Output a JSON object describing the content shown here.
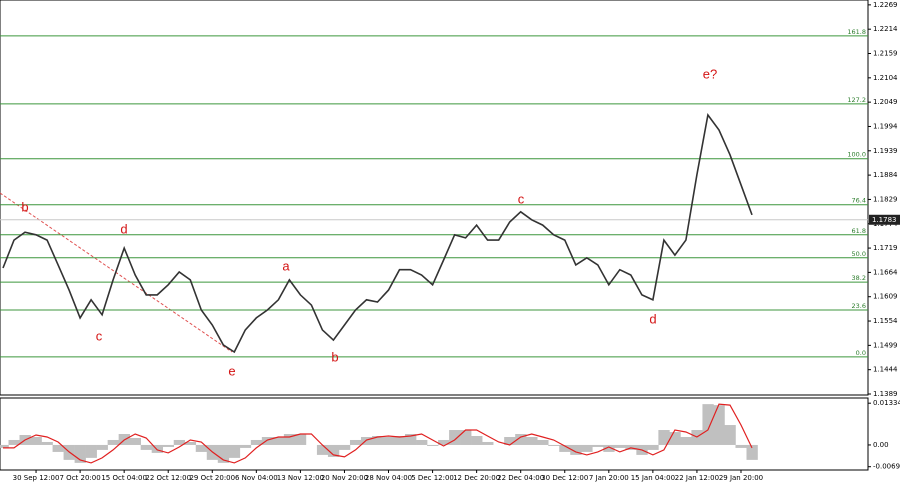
{
  "chart_data": [
    {
      "type": "line",
      "categories": [
        null,
        null,
        null,
        "30 Sep 12:00",
        null,
        null,
        null,
        "7 Oct 20:00",
        null,
        null,
        null,
        "15 Oct 04:00",
        null,
        null,
        null,
        "22 Oct 12:00",
        null,
        null,
        null,
        "29 Oct 20:00",
        null,
        null,
        null,
        "6 Nov 04:00",
        null,
        null,
        null,
        "13 Nov 12:00",
        null,
        null,
        null,
        "20 Nov 20:00",
        null,
        null,
        null,
        "28 Nov 04:00",
        null,
        null,
        null,
        "5 Dec 12:00",
        null,
        null,
        null,
        "12 Dec 20:00",
        null,
        null,
        null,
        "22 Dec 04:00",
        null,
        null,
        null,
        "30 Dec 12:00",
        null,
        null,
        null,
        "7 Jan 20:00",
        null,
        null,
        null,
        "15 Jan 04:00",
        null,
        null,
        null,
        "22 Jan 12:00",
        null,
        null,
        null,
        "29 Jan 20:00",
        null
      ],
      "series": [
        {
          "color": "#333333",
          "values": [
            1.1674,
            1.1737,
            1.1755,
            1.1749,
            1.1737,
            1.1681,
            1.1624,
            1.1561,
            1.1602,
            1.1568,
            1.1647,
            1.1719,
            1.1658,
            1.1613,
            1.1613,
            1.1636,
            1.1665,
            1.1647,
            1.1579,
            1.1545,
            1.15,
            1.1484,
            1.1534,
            1.1561,
            1.1579,
            1.1602,
            1.1647,
            1.1613,
            1.159,
            1.1534,
            1.1511,
            1.1545,
            1.1579,
            1.1602,
            1.1597,
            1.1624,
            1.167,
            1.167,
            1.1658,
            1.1636,
            1.1692,
            1.1749,
            1.1742,
            1.1771,
            1.1737,
            1.1737,
            1.1778,
            1.1801,
            1.1783,
            1.1771,
            1.1749,
            1.1737,
            1.1681,
            1.1697,
            1.1681,
            1.1636,
            1.167,
            1.1658,
            1.1613,
            1.1602,
            1.1737,
            1.1703,
            1.1737,
            1.1885,
            1.202,
            1.1986,
            1.193,
            1.1862,
            1.1794
          ]
        }
      ],
      "ylim": [
        1.1389,
        1.228
      ],
      "yticks": [
        1.2269,
        1.2214,
        1.2159,
        1.2104,
        1.2049,
        1.1994,
        1.1939,
        1.1884,
        1.1829,
        1.1774,
        1.1719,
        1.1664,
        1.1609,
        1.1554,
        1.1499,
        1.1444,
        1.1389
      ],
      "last_price": 1.1783,
      "fib_levels": [
        {
          "label": "161.8",
          "value": 1.2199
        },
        {
          "label": "127.2",
          "value": 1.2045
        },
        {
          "label": "100.0",
          "value": 1.1921
        },
        {
          "label": "76.4",
          "value": 1.1817
        },
        {
          "label": "61.8",
          "value": 1.1749
        },
        {
          "label": "50.0",
          "value": 1.1697
        },
        {
          "label": "38.2",
          "value": 1.1642
        },
        {
          "label": "23.6",
          "value": 1.1579
        },
        {
          "label": "0.0",
          "value": 1.1473
        }
      ],
      "fib_color": "#3c963c",
      "annotations": [
        "b",
        "d",
        "c",
        "e",
        "a",
        "b",
        "c",
        "d",
        "e?"
      ]
    },
    {
      "type": "bar",
      "series": [
        {
          "color": "#c0c0c0",
          "values": [
            -0.00095,
            0.00159,
            0.00318,
            0.00254,
            0.00095,
            -0.00223,
            -0.00477,
            -0.00572,
            -0.00413,
            -0.00159,
            0.00159,
            0.0035,
            0.00223,
            -0.00159,
            -0.00254,
            -0.00064,
            0.00159,
            0.00095,
            -0.00223,
            -0.00477,
            -0.00572,
            -0.00413,
            -0.00095,
            0.00159,
            0.00254,
            0.00254,
            0.0035,
            0.0035,
            0,
            -0.00318,
            -0.00382,
            -0.00159,
            0.00159,
            0.00254,
            0.00286,
            0.00254,
            0.00286,
            0.0035,
            0.00159,
            -0.00032,
            0.00159,
            0.00477,
            0.00477,
            0.00286,
            0.00095,
            0,
            0.00254,
            0.0035,
            0.00254,
            0.00159,
            -0.00032,
            -0.00223,
            -0.00318,
            -0.00223,
            -0.00064,
            -0.00223,
            -0.00095,
            -0.00159,
            -0.00318,
            -0.00159,
            0.00477,
            0.00413,
            0.00254,
            0.00477,
            0.01304,
            0.01272,
            0.00636,
            -0.00095,
            -0.00477
          ]
        },
        {
          "color": "#e02020",
          "values": [
            -0.00095,
            -0.00095,
            0.00159,
            0.00318,
            0.00254,
            0.00095,
            -0.00223,
            -0.00477,
            -0.00572,
            -0.00413,
            -0.00159,
            0.00159,
            0.0035,
            0.00223,
            -0.00159,
            -0.00254,
            -0.00064,
            0.00159,
            0.00095,
            -0.00223,
            -0.00477,
            -0.00572,
            -0.00413,
            -0.00095,
            0.00159,
            0.00254,
            0.00254,
            0.0035,
            0.0035,
            0,
            -0.00318,
            -0.00382,
            -0.00159,
            0.00159,
            0.00254,
            0.00286,
            0.00254,
            0.00286,
            0.0035,
            0.00159,
            -0.00032,
            0.00159,
            0.00477,
            0.00477,
            0.00286,
            0.00095,
            0,
            0.00254,
            0.0035,
            0.00254,
            0.00159,
            -0.00032,
            -0.00223,
            -0.00318,
            -0.00223,
            -0.00064,
            -0.00223,
            -0.00095,
            -0.00159,
            -0.00318,
            -0.00159,
            0.00477,
            0.00413,
            0.00254,
            0.00477,
            0.01304,
            0.01272,
            0.00636,
            -0.00095
          ]
        }
      ],
      "ylim": [
        -0.008,
        0.015
      ],
      "yticks": [
        0.01334,
        {
          "value": 0,
          "label": "0.00"
        },
        -0.00695
      ]
    }
  ]
}
